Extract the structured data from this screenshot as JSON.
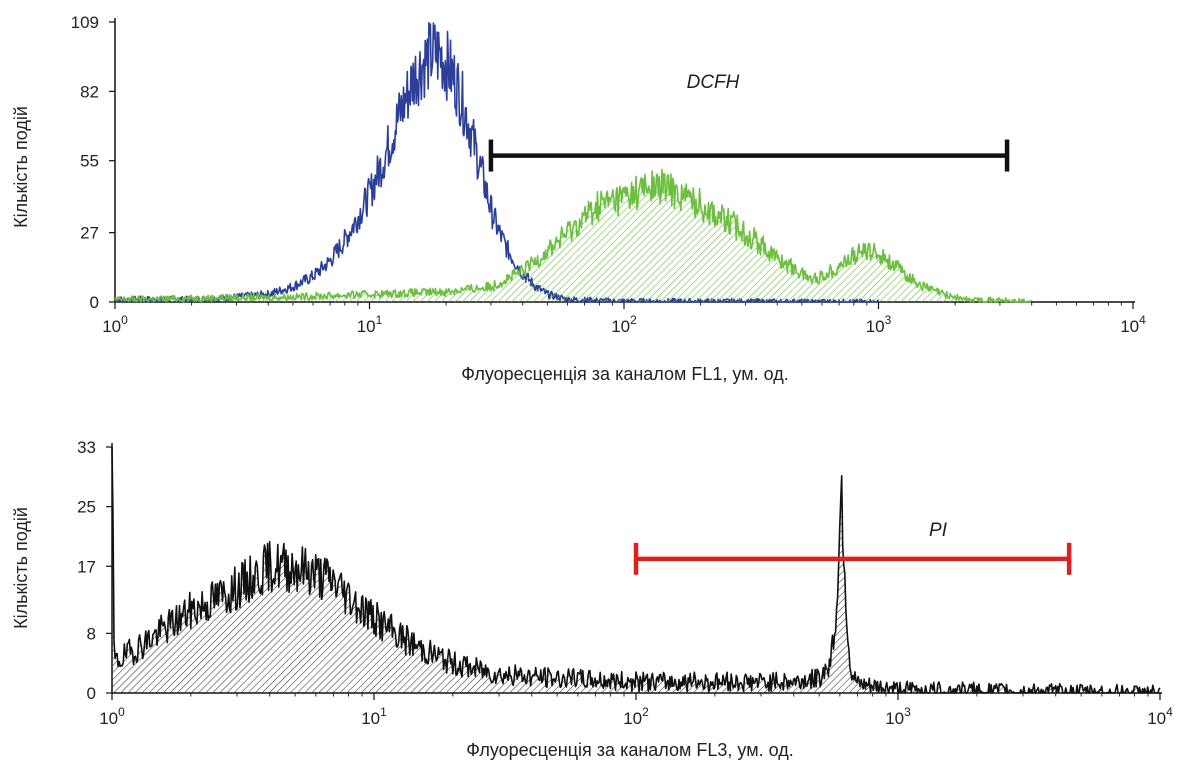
{
  "chart_data": [
    {
      "type": "area",
      "xscale": "log",
      "xlim": [
        1,
        10000
      ],
      "ylim": [
        0,
        109
      ],
      "xlabel": "Флуоресценція за каналом FL1, ум. од.",
      "ylabel": "Кількість подій",
      "yticks": [
        "0",
        "27",
        "55",
        "82",
        "109"
      ],
      "ytick_values": [
        0,
        27,
        55,
        82,
        109
      ],
      "xticks": [
        {
          "value": 1,
          "base": "10",
          "exp": "0"
        },
        {
          "value": 10,
          "base": "10",
          "exp": "1"
        },
        {
          "value": 100,
          "base": "10",
          "exp": "2"
        },
        {
          "value": 1000,
          "base": "10",
          "exp": "3"
        },
        {
          "value": 10000,
          "base": "10",
          "exp": "4"
        }
      ],
      "series": [
        {
          "color": "#2b3f9a",
          "filled": false,
          "points": [
            [
              1.0,
              1
            ],
            [
              2.0,
              1
            ],
            [
              3.0,
              2
            ],
            [
              4.0,
              3
            ],
            [
              5.0,
              6
            ],
            [
              6.0,
              10
            ],
            [
              7.0,
              16
            ],
            [
              8.0,
              24
            ],
            [
              9.0,
              33
            ],
            [
              10.0,
              42
            ],
            [
              11.0,
              52
            ],
            [
              12.0,
              62
            ],
            [
              13.0,
              72
            ],
            [
              14.0,
              80
            ],
            [
              15.0,
              88
            ],
            [
              16.0,
              92
            ],
            [
              17.0,
              95
            ],
            [
              18.0,
              97
            ],
            [
              19.0,
              96
            ],
            [
              20.0,
              93
            ],
            [
              22.0,
              85
            ],
            [
              24.0,
              73
            ],
            [
              26.0,
              60
            ],
            [
              28.0,
              48
            ],
            [
              30.0,
              36
            ],
            [
              32.0,
              28
            ],
            [
              35.0,
              20
            ],
            [
              40.0,
              11
            ],
            [
              45.0,
              6
            ],
            [
              50.0,
              3
            ],
            [
              60.0,
              1
            ],
            [
              80.0,
              0.5
            ],
            [
              100.0,
              0.3
            ],
            [
              1000.0,
              0
            ]
          ]
        },
        {
          "color": "#6cbf3f",
          "filled": true,
          "points": [
            [
              1.0,
              1
            ],
            [
              5.0,
              2
            ],
            [
              10.0,
              3
            ],
            [
              20.0,
              4
            ],
            [
              30.0,
              6
            ],
            [
              40.0,
              12
            ],
            [
              50.0,
              20
            ],
            [
              60.0,
              27
            ],
            [
              70.0,
              33
            ],
            [
              80.0,
              38
            ],
            [
              100.0,
              41
            ],
            [
              120.0,
              44
            ],
            [
              140.0,
              45
            ],
            [
              160.0,
              43
            ],
            [
              200.0,
              38
            ],
            [
              250.0,
              32
            ],
            [
              300.0,
              27
            ],
            [
              350.0,
              22
            ],
            [
              400.0,
              17
            ],
            [
              450.0,
              14
            ],
            [
              500.0,
              11
            ],
            [
              550.0,
              9
            ],
            [
              600.0,
              10
            ],
            [
              700.0,
              14
            ],
            [
              800.0,
              18
            ],
            [
              900.0,
              20
            ],
            [
              1000.0,
              19
            ],
            [
              1100.0,
              16
            ],
            [
              1300.0,
              10
            ],
            [
              1500.0,
              6
            ],
            [
              1800.0,
              3
            ],
            [
              2200.0,
              1
            ],
            [
              3000.0,
              0.5
            ],
            [
              4000.0,
              0
            ]
          ]
        }
      ],
      "gate": {
        "label": "DCFH",
        "x_range": [
          30,
          3200
        ],
        "y": 57,
        "color": "#111111"
      }
    },
    {
      "type": "area",
      "xscale": "log",
      "xlim": [
        1,
        10000
      ],
      "ylim": [
        0,
        33
      ],
      "xlabel": "Флуоресценція за каналом FL3, ум. од.",
      "ylabel": "Кількість подій",
      "yticks": [
        "0",
        "8",
        "17",
        "25",
        "33"
      ],
      "ytick_values": [
        0,
        8,
        17,
        25,
        33
      ],
      "xticks": [
        {
          "value": 1,
          "base": "10",
          "exp": "0"
        },
        {
          "value": 10,
          "base": "10",
          "exp": "1"
        },
        {
          "value": 100,
          "base": "10",
          "exp": "2"
        },
        {
          "value": 1000,
          "base": "10",
          "exp": "3"
        },
        {
          "value": 10000,
          "base": "10",
          "exp": "4"
        }
      ],
      "series": [
        {
          "color": "#111111",
          "filled": true,
          "points": [
            [
              1.0,
              33
            ],
            [
              1.02,
              4
            ],
            [
              1.5,
              8
            ],
            [
              2.0,
              11
            ],
            [
              3.0,
              14
            ],
            [
              4.0,
              17
            ],
            [
              5.0,
              17
            ],
            [
              6.0,
              16
            ],
            [
              7.0,
              15
            ],
            [
              8.0,
              13
            ],
            [
              10.0,
              10
            ],
            [
              12.0,
              8
            ],
            [
              15.0,
              6
            ],
            [
              20.0,
              4
            ],
            [
              30.0,
              2.5
            ],
            [
              50.0,
              2
            ],
            [
              100.0,
              1.5
            ],
            [
              200.0,
              1.5
            ],
            [
              400.0,
              1.5
            ],
            [
              500.0,
              2
            ],
            [
              550.0,
              4
            ],
            [
              580.0,
              10
            ],
            [
              600.0,
              22
            ],
            [
              610.0,
              28
            ],
            [
              620.0,
              20
            ],
            [
              640.0,
              9
            ],
            [
              660.0,
              3
            ],
            [
              700.0,
              1
            ],
            [
              1000.0,
              0.5
            ],
            [
              2000.0,
              0.3
            ],
            [
              10000.0,
              0
            ]
          ]
        }
      ],
      "gate": {
        "label": "PI",
        "x_range": [
          100,
          4500
        ],
        "y": 18,
        "color": "#e02020"
      }
    }
  ]
}
